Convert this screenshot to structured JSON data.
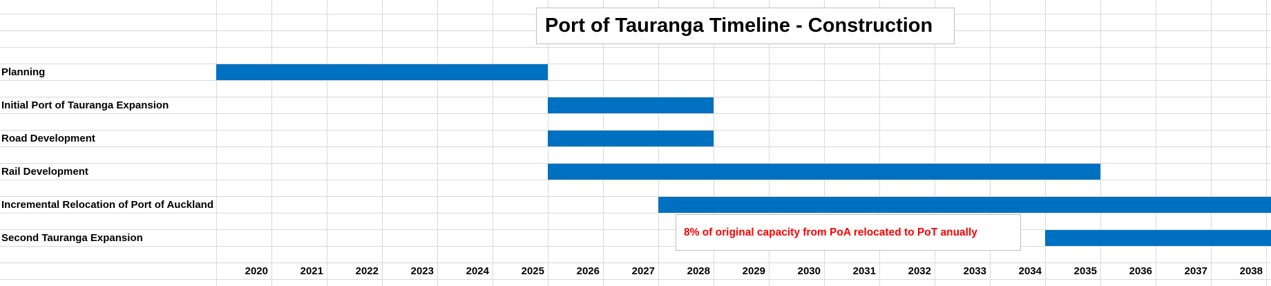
{
  "chart_data": {
    "type": "gantt",
    "title": "Port of Tauranga Timeline - Construction",
    "x_ticks": [
      "2020",
      "2021",
      "2022",
      "2023",
      "2024",
      "2025",
      "2026",
      "2027",
      "2028",
      "2029",
      "2030",
      "2031",
      "2032",
      "2033",
      "2034",
      "2035",
      "2036",
      "2037",
      "2038"
    ],
    "x_start": 2019.25,
    "x_end": 2038.35,
    "tasks": [
      {
        "label": "Planning",
        "start": 2019.25,
        "end": 2025.25
      },
      {
        "label": "Initial Port of Tauranga Expansion",
        "start": 2025.25,
        "end": 2028.25
      },
      {
        "label": "Road Development",
        "start": 2025.25,
        "end": 2028.25
      },
      {
        "label": "Rail Development",
        "start": 2025.25,
        "end": 2035.25
      },
      {
        "label": "Incremental Relocation of Port of Auckland",
        "start": 2027.25,
        "end": 2038.35
      },
      {
        "label": "Second Tauranga Expansion",
        "start": 2034.25,
        "end": 2038.35
      }
    ],
    "bar_color": "#0070c0",
    "annotation": "8% of original capacity from PoA relocated to PoT anually",
    "annotation_color": "#ff0000",
    "grid": true
  }
}
